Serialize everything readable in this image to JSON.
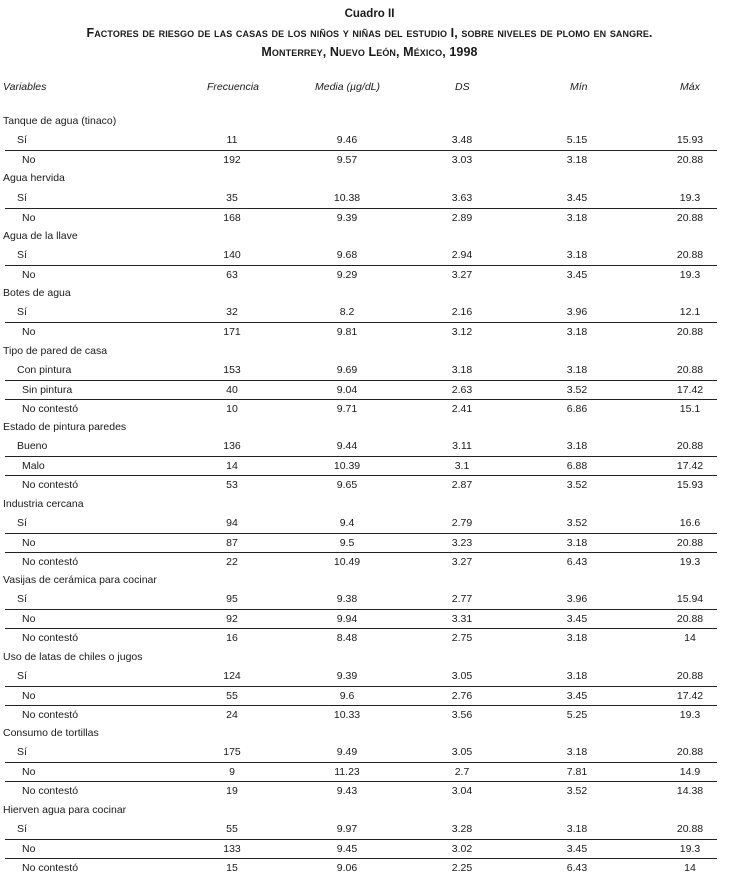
{
  "caption": "Cuadro II",
  "title_line1": "Factores de riesgo de las casas de los niños y niñas del estudio I, sobre niveles de plomo en sangre.",
  "title_line2": "Monterrey, Nuevo León, México, 1998",
  "columns": [
    "Variables",
    "Frecuencia",
    "Media (µg/dL)",
    "DS",
    "Mín",
    "Máx"
  ],
  "groups": [
    {
      "label": "Tanque de agua (tinaco)",
      "rows": [
        [
          "Sí",
          "11",
          "9.46",
          "3.48",
          "5.15",
          "15.93"
        ],
        [
          "No",
          "192",
          "9.57",
          "3.03",
          "3.18",
          "20.88"
        ]
      ]
    },
    {
      "label": "Agua hervida",
      "rows": [
        [
          "Sí",
          "35",
          "10.38",
          "3.63",
          "3.45",
          "19.3"
        ],
        [
          "No",
          "168",
          "9.39",
          "2.89",
          "3.18",
          "20.88"
        ]
      ]
    },
    {
      "label": "Agua de la llave",
      "rows": [
        [
          "Sí",
          "140",
          "9.68",
          "2.94",
          "3.18",
          "20.88"
        ],
        [
          "No",
          "63",
          "9.29",
          "3.27",
          "3.45",
          "19.3"
        ]
      ]
    },
    {
      "label": "Botes de agua",
      "rows": [
        [
          "Sí",
          "32",
          "8.2",
          "2.16",
          "3.96",
          "12.1"
        ],
        [
          "No",
          "171",
          "9.81",
          "3.12",
          "3.18",
          "20.88"
        ]
      ]
    },
    {
      "label": "Tipo de pared de casa",
      "rows": [
        [
          "Con pintura",
          "153",
          "9.69",
          "3.18",
          "3.18",
          "20.88"
        ],
        [
          "Sin pintura",
          "40",
          "9.04",
          "2.63",
          "3.52",
          "17.42"
        ],
        [
          "No contestó",
          "10",
          "9.71",
          "2.41",
          "6.86",
          "15.1"
        ]
      ]
    },
    {
      "label": "Estado de pintura paredes",
      "rows": [
        [
          "Bueno",
          "136",
          "9.44",
          "3.11",
          "3.18",
          "20.88"
        ],
        [
          "Malo",
          "14",
          "10.39",
          "3.1",
          "6.88",
          "17.42"
        ],
        [
          "No contestó",
          "53",
          "9.65",
          "2.87",
          "3.52",
          "15.93"
        ]
      ]
    },
    {
      "label": "Industria cercana",
      "rows": [
        [
          "Sí",
          "94",
          "9.4",
          "2.79",
          "3.52",
          "16.6"
        ],
        [
          "No",
          "87",
          "9.5",
          "3.23",
          "3.18",
          "20.88"
        ],
        [
          "No contestó",
          "22",
          "10.49",
          "3.27",
          "6.43",
          "19.3"
        ]
      ]
    },
    {
      "label": "Vasijas de cerámica para cocinar",
      "rows": [
        [
          "Sí",
          "95",
          "9.38",
          "2.77",
          "3.96",
          "15.94"
        ],
        [
          "No",
          "92",
          "9.94",
          "3.31",
          "3.45",
          "20.88"
        ],
        [
          "No contestó",
          "16",
          "8.48",
          "2.75",
          "3.18",
          "14"
        ]
      ]
    },
    {
      "label": "Uso de latas de chiles o jugos",
      "rows": [
        [
          "Sí",
          "124",
          "9.39",
          "3.05",
          "3.18",
          "20.88"
        ],
        [
          "No",
          "55",
          "9.6",
          "2.76",
          "3.45",
          "17.42"
        ],
        [
          "No contestó",
          "24",
          "10.33",
          "3.56",
          "5.25",
          "19.3"
        ]
      ]
    },
    {
      "label": "Consumo de tortillas",
      "rows": [
        [
          "Sí",
          "175",
          "9.49",
          "3.05",
          "3.18",
          "20.88"
        ],
        [
          "No",
          "9",
          "11.23",
          "2.7",
          "7.81",
          "14.9"
        ],
        [
          "No contestó",
          "19",
          "9.43",
          "3.04",
          "3.52",
          "14.38"
        ]
      ]
    },
    {
      "label": "Hierven agua para cocinar",
      "rows": [
        [
          "Sí",
          "55",
          "9.97",
          "3.28",
          "3.18",
          "20.88"
        ],
        [
          "No",
          "133",
          "9.45",
          "3.02",
          "3.45",
          "19.3"
        ],
        [
          "No contestó",
          "15",
          "9.06",
          "2.25",
          "6.43",
          "14"
        ]
      ]
    }
  ]
}
